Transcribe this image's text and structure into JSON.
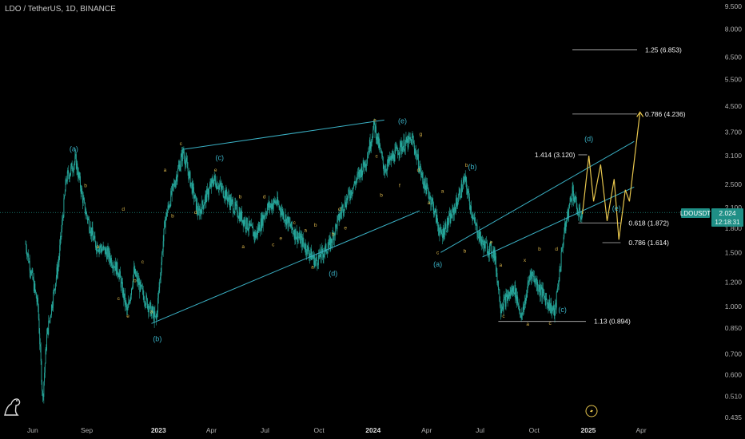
{
  "header": {
    "title": "LDO / TetherUS, 1D, BINANCE"
  },
  "price_tag": {
    "symbol": "LDOUSDT",
    "price": "2.024",
    "countdown": "12:18:31"
  },
  "colors": {
    "background": "#000000",
    "candle": "#26a69a",
    "channel": "#3ab0c4",
    "wave": "#d9b44a",
    "projection": "#e6c54d",
    "fib": "#bdbdbd",
    "price_tag": "#1f8f86"
  },
  "icons": {
    "logo": "dino-logo-icon",
    "bolt": "lightning-icon"
  },
  "chart_data": {
    "type": "line",
    "title": "LDO / TetherUS, 1D, BINANCE",
    "y_scale": "log",
    "ylim": [
      0.435,
      9.5
    ],
    "y_ticks": [
      "9.500",
      "8.000",
      "6.500",
      "5.500",
      "4.500",
      "3.700",
      "3.100",
      "2.500",
      "2.100",
      "1.800",
      "1.500",
      "1.200",
      "1.000",
      "0.850",
      "0.700",
      "0.600",
      "0.510",
      "0.435"
    ],
    "x_ticks": [
      "Jun",
      "Sep",
      "2023",
      "Apr",
      "Jul",
      "Oct",
      "2024",
      "Apr",
      "Jul",
      "Oct",
      "2025",
      "Apr"
    ],
    "series": [
      {
        "values": [
          [
            "2022-05-20",
            1.6
          ],
          [
            "2022-06-10",
            1.0
          ],
          [
            "2022-06-18",
            0.5
          ],
          [
            "2022-06-25",
            0.8
          ],
          [
            "2022-07-15",
            1.4
          ],
          [
            "2022-07-28",
            2.6
          ],
          [
            "2022-08-13",
            3.0
          ],
          [
            "2022-08-28",
            2.1
          ],
          [
            "2022-09-15",
            1.6
          ],
          [
            "2022-10-05",
            1.5
          ],
          [
            "2022-10-25",
            1.3
          ],
          [
            "2022-11-09",
            0.95
          ],
          [
            "2022-11-20",
            1.3
          ],
          [
            "2022-12-05",
            1.1
          ],
          [
            "2022-12-28",
            0.9
          ],
          [
            "2023-01-12",
            1.9
          ],
          [
            "2023-01-25",
            2.4
          ],
          [
            "2023-02-12",
            3.2
          ],
          [
            "2023-03-10",
            2.0
          ],
          [
            "2023-04-05",
            2.6
          ],
          [
            "2023-04-20",
            2.4
          ],
          [
            "2023-05-10",
            2.1
          ],
          [
            "2023-06-15",
            1.7
          ],
          [
            "2023-07-05",
            2.1
          ],
          [
            "2023-07-20",
            2.2
          ],
          [
            "2023-08-15",
            1.8
          ],
          [
            "2023-09-05",
            1.6
          ],
          [
            "2023-09-25",
            1.4
          ],
          [
            "2023-10-20",
            1.6
          ],
          [
            "2023-11-10",
            2.1
          ],
          [
            "2023-11-30",
            2.5
          ],
          [
            "2023-12-20",
            3.0
          ],
          [
            "2024-01-03",
            3.9
          ],
          [
            "2024-01-20",
            2.8
          ],
          [
            "2024-02-15",
            3.3
          ],
          [
            "2024-03-08",
            3.5
          ],
          [
            "2024-03-25",
            2.6
          ],
          [
            "2024-04-10",
            2.2
          ],
          [
            "2024-04-25",
            1.7
          ],
          [
            "2024-05-15",
            2.0
          ],
          [
            "2024-06-05",
            2.6
          ],
          [
            "2024-06-20",
            1.9
          ],
          [
            "2024-07-05",
            1.6
          ],
          [
            "2024-07-25",
            1.5
          ],
          [
            "2024-08-05",
            1.0
          ],
          [
            "2024-08-28",
            1.15
          ],
          [
            "2024-09-10",
            0.92
          ],
          [
            "2024-09-25",
            1.3
          ],
          [
            "2024-10-15",
            1.1
          ],
          [
            "2024-11-05",
            0.95
          ],
          [
            "2024-11-20",
            1.7
          ],
          [
            "2024-12-05",
            2.4
          ],
          [
            "2024-12-15",
            2.0
          ],
          [
            "2024-12-22",
            2.0
          ]
        ]
      }
    ],
    "projection_path": [
      [
        "2024-12-22",
        2.0
      ],
      [
        "2025-01-02",
        3.1
      ],
      [
        "2025-01-10",
        2.2
      ],
      [
        "2025-01-22",
        2.9
      ],
      [
        "2025-02-02",
        1.9
      ],
      [
        "2025-02-14",
        2.6
      ],
      [
        "2025-02-22",
        1.65
      ],
      [
        "2025-03-05",
        2.4
      ],
      [
        "2025-03-12",
        2.2
      ],
      [
        "2025-03-30",
        4.3
      ]
    ],
    "fib_levels": [
      {
        "label": "1.25 (6.853)",
        "value": 6.853
      },
      {
        "label": "0.786 (4.236)",
        "value": 4.236
      },
      {
        "label": "1.414 (3.120)",
        "value": 3.12
      },
      {
        "label": "0.618 (1.872)",
        "value": 1.872
      },
      {
        "label": "0.786 (1.614)",
        "value": 1.614
      },
      {
        "label": "1.13 (0.894)",
        "value": 0.894
      }
    ],
    "current_price": 2.024,
    "channels": [
      {
        "from": [
          "2023-02-12",
          3.25
        ],
        "to": [
          "2024-01-20",
          4.05
        ]
      },
      {
        "from": [
          "2022-12-20",
          0.88
        ],
        "to": [
          "2024-03-20",
          2.05
        ]
      },
      {
        "from": [
          "2024-04-25",
          1.5
        ],
        "to": [
          "2025-03-20",
          3.45
        ]
      },
      {
        "from": [
          "2024-07-05",
          1.45
        ],
        "to": [
          "2025-03-20",
          2.45
        ]
      }
    ],
    "wave_labels": [
      {
        "text": "(a)",
        "at": [
          "2022-08-10",
          3.2
        ],
        "kind": "major"
      },
      {
        "text": "(b)",
        "at": [
          "2022-12-30",
          0.77
        ],
        "kind": "major"
      },
      {
        "text": "(c)",
        "at": [
          "2023-04-15",
          3.0
        ],
        "kind": "major"
      },
      {
        "text": "(d)",
        "at": [
          "2023-10-25",
          1.26
        ],
        "kind": "major"
      },
      {
        "text": "(e)",
        "at": [
          "2024-02-20",
          3.95
        ],
        "kind": "major"
      },
      {
        "text": "(a)",
        "at": [
          "2024-04-20",
          1.35
        ],
        "kind": "major"
      },
      {
        "text": "(b)",
        "at": [
          "2024-06-18",
          2.8
        ],
        "kind": "major"
      },
      {
        "text": "(c)",
        "at": [
          "2024-11-18",
          0.96
        ],
        "kind": "major"
      },
      {
        "text": "(d)",
        "at": [
          "2025-01-02",
          3.45
        ],
        "kind": "major"
      },
      {
        "text": "(e)",
        "at": [
          "2025-02-18",
          2.05
        ],
        "kind": "major"
      },
      {
        "text": "b",
        "at": [
          "2022-08-30",
          2.45
        ],
        "kind": "minor"
      },
      {
        "text": "a",
        "at": [
          "2022-09-20",
          1.55
        ],
        "kind": "minor"
      },
      {
        "text": "c",
        "at": [
          "2022-10-25",
          1.05
        ],
        "kind": "minor"
      },
      {
        "text": "d",
        "at": [
          "2022-11-02",
          2.05
        ],
        "kind": "minor"
      },
      {
        "text": "e",
        "at": [
          "2022-11-10",
          0.92
        ],
        "kind": "minor"
      },
      {
        "text": "b",
        "at": [
          "2022-11-22",
          1.2
        ],
        "kind": "minor"
      },
      {
        "text": "c",
        "at": [
          "2022-12-05",
          1.38
        ],
        "kind": "minor"
      },
      {
        "text": "a",
        "at": [
          "2022-12-20",
          0.95
        ],
        "kind": "minor"
      },
      {
        "text": "a",
        "at": [
          "2023-01-12",
          2.75
        ],
        "kind": "minor"
      },
      {
        "text": "b",
        "at": [
          "2023-01-25",
          1.95
        ],
        "kind": "minor"
      },
      {
        "text": "c",
        "at": [
          "2023-02-08",
          3.35
        ],
        "kind": "minor"
      },
      {
        "text": "d",
        "at": [
          "2023-03-05",
          2.0
        ],
        "kind": "minor"
      },
      {
        "text": "e",
        "at": [
          "2023-04-08",
          2.75
        ],
        "kind": "minor"
      },
      {
        "text": "b",
        "at": [
          "2023-05-20",
          2.25
        ],
        "kind": "minor"
      },
      {
        "text": "d",
        "at": [
          "2023-06-30",
          2.25
        ],
        "kind": "minor"
      },
      {
        "text": "a",
        "at": [
          "2023-05-25",
          1.55
        ],
        "kind": "minor"
      },
      {
        "text": "c",
        "at": [
          "2023-07-15",
          1.57
        ],
        "kind": "minor"
      },
      {
        "text": "e",
        "at": [
          "2023-07-28",
          1.65
        ],
        "kind": "minor"
      },
      {
        "text": "a",
        "at": [
          "2023-09-08",
          1.75
        ],
        "kind": "minor"
      },
      {
        "text": "c",
        "at": [
          "2023-08-20",
          1.85
        ],
        "kind": "minor"
      },
      {
        "text": "b",
        "at": [
          "2023-09-25",
          1.82
        ],
        "kind": "minor"
      },
      {
        "text": "a",
        "at": [
          "2023-09-20",
          1.33
        ],
        "kind": "minor"
      },
      {
        "text": "b",
        "at": [
          "2023-10-25",
          1.7
        ],
        "kind": "minor"
      },
      {
        "text": "d",
        "at": [
          "2023-11-05",
          2.05
        ],
        "kind": "minor"
      },
      {
        "text": "e",
        "at": [
          "2023-11-15",
          1.78
        ],
        "kind": "minor"
      },
      {
        "text": "e",
        "at": [
          "2024-01-04",
          4.0
        ],
        "kind": "minor"
      },
      {
        "text": "c",
        "at": [
          "2024-01-07",
          3.05
        ],
        "kind": "minor"
      },
      {
        "text": "b",
        "at": [
          "2024-01-15",
          2.28
        ],
        "kind": "minor"
      },
      {
        "text": "f",
        "at": [
          "2024-02-15",
          2.45
        ],
        "kind": "minor"
      },
      {
        "text": "g",
        "at": [
          "2024-03-22",
          3.6
        ],
        "kind": "minor"
      },
      {
        "text": "d",
        "at": [
          "2024-03-18",
          2.75
        ],
        "kind": "minor"
      },
      {
        "text": "a",
        "at": [
          "2024-04-05",
          2.15
        ],
        "kind": "minor"
      },
      {
        "text": "c",
        "at": [
          "2024-04-20",
          1.48
        ],
        "kind": "minor"
      },
      {
        "text": "a",
        "at": [
          "2024-04-28",
          2.35
        ],
        "kind": "minor"
      },
      {
        "text": "b",
        "at": [
          "2024-06-08",
          2.85
        ],
        "kind": "minor"
      },
      {
        "text": "e",
        "at": [
          "2024-07-20",
          1.6
        ],
        "kind": "minor"
      },
      {
        "text": "b",
        "at": [
          "2024-06-05",
          1.5
        ],
        "kind": "minor"
      },
      {
        "text": "a",
        "at": [
          "2024-08-05",
          1.35
        ],
        "kind": "minor"
      },
      {
        "text": "c",
        "at": [
          "2024-08-10",
          0.92
        ],
        "kind": "minor"
      },
      {
        "text": "x",
        "at": [
          "2024-09-15",
          1.4
        ],
        "kind": "minor"
      },
      {
        "text": "b",
        "at": [
          "2024-10-10",
          1.52
        ],
        "kind": "minor"
      },
      {
        "text": "d",
        "at": [
          "2024-11-08",
          1.52
        ],
        "kind": "minor"
      },
      {
        "text": "a",
        "at": [
          "2024-09-20",
          0.865
        ],
        "kind": "minor"
      },
      {
        "text": "c",
        "at": [
          "2024-10-28",
          0.87
        ],
        "kind": "minor"
      }
    ]
  }
}
